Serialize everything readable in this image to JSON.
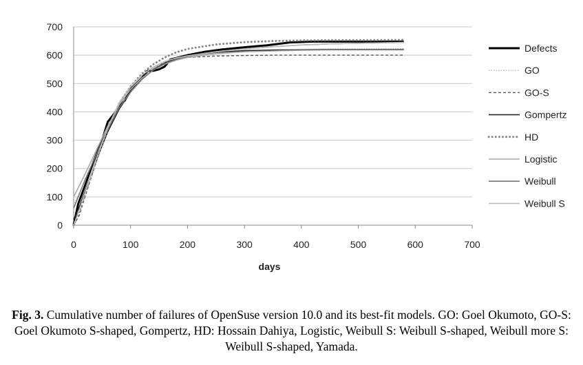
{
  "chart_data": {
    "type": "line",
    "title": "",
    "xlabel": "days",
    "ylabel": "",
    "xlim": [
      0,
      700
    ],
    "ylim": [
      0,
      700
    ],
    "xticks": [
      0,
      100,
      200,
      300,
      400,
      500,
      600,
      700
    ],
    "yticks": [
      0,
      100,
      200,
      300,
      400,
      500,
      600,
      700
    ],
    "grid": "horizontal",
    "legend_position": "right",
    "series": [
      {
        "name": "Defects",
        "style": "thick-solid",
        "color": "#000000",
        "x": [
          0,
          8,
          20,
          35,
          50,
          60,
          70,
          80,
          90,
          100,
          110,
          120,
          130,
          140,
          150,
          160,
          170,
          180,
          200,
          230,
          260,
          300,
          340,
          380,
          420,
          460,
          500,
          540,
          580
        ],
        "y": [
          0,
          75,
          140,
          225,
          300,
          365,
          390,
          420,
          440,
          480,
          500,
          520,
          545,
          545,
          550,
          560,
          585,
          590,
          600,
          612,
          620,
          628,
          635,
          645,
          648,
          648,
          648,
          648,
          648
        ]
      },
      {
        "name": "GO",
        "style": "dotted",
        "color": "#aaaaaa",
        "x": [
          0,
          20,
          40,
          60,
          80,
          100,
          120,
          140,
          160,
          180,
          200,
          250,
          300,
          350,
          400,
          450,
          500,
          580
        ],
        "y": [
          70,
          155,
          250,
          340,
          410,
          470,
          520,
          555,
          575,
          590,
          598,
          608,
          614,
          618,
          620,
          622,
          622,
          623
        ]
      },
      {
        "name": "GO-S",
        "style": "dashed",
        "color": "#555555",
        "x": [
          0,
          10,
          20,
          40,
          60,
          80,
          100,
          120,
          140,
          160,
          180,
          200,
          250,
          300,
          350,
          400,
          450,
          500,
          580
        ],
        "y": [
          0,
          35,
          100,
          225,
          340,
          430,
          490,
          530,
          558,
          575,
          585,
          592,
          597,
          599,
          600,
          600,
          600,
          600,
          600
        ]
      },
      {
        "name": "Gompertz",
        "style": "solid",
        "color": "#222222",
        "x": [
          0,
          10,
          20,
          40,
          60,
          80,
          100,
          120,
          140,
          160,
          180,
          200,
          250,
          300,
          350,
          400,
          450,
          500,
          580
        ],
        "y": [
          20,
          65,
          120,
          230,
          330,
          410,
          470,
          515,
          550,
          572,
          588,
          598,
          610,
          616,
          618,
          619,
          620,
          620,
          620
        ]
      },
      {
        "name": "HD",
        "style": "thick-dotted",
        "color": "#888888",
        "x": [
          0,
          10,
          20,
          40,
          60,
          80,
          100,
          120,
          140,
          160,
          180,
          200,
          250,
          300,
          350,
          400,
          450,
          500,
          580
        ],
        "y": [
          0,
          50,
          110,
          230,
          340,
          430,
          490,
          535,
          568,
          592,
          610,
          622,
          638,
          646,
          650,
          652,
          653,
          653,
          654
        ]
      },
      {
        "name": "Logistic",
        "style": "solid",
        "color": "#aaaaaa",
        "x": [
          0,
          10,
          20,
          40,
          60,
          80,
          100,
          120,
          140,
          160,
          180,
          200,
          250,
          300,
          350,
          400,
          450,
          500,
          580
        ],
        "y": [
          100,
          140,
          180,
          265,
          350,
          425,
          480,
          520,
          548,
          568,
          582,
          592,
          605,
          612,
          615,
          617,
          618,
          618,
          618
        ]
      },
      {
        "name": "Weibull",
        "style": "solid",
        "color": "#777777",
        "x": [
          0,
          10,
          20,
          40,
          60,
          80,
          100,
          120,
          140,
          160,
          180,
          200,
          250,
          300,
          350,
          400,
          450,
          500,
          580
        ],
        "y": [
          60,
          110,
          160,
          250,
          340,
          415,
          470,
          515,
          548,
          570,
          585,
          596,
          612,
          622,
          630,
          636,
          640,
          642,
          645
        ]
      },
      {
        "name": "Weibull S",
        "style": "solid",
        "color": "#bbbbbb",
        "x": [
          0,
          10,
          20,
          40,
          60,
          80,
          100,
          120,
          140,
          160,
          180,
          200,
          250,
          300,
          350,
          400,
          450,
          500,
          580
        ],
        "y": [
          0,
          55,
          115,
          235,
          345,
          432,
          490,
          530,
          558,
          578,
          590,
          598,
          612,
          622,
          630,
          636,
          640,
          642,
          645
        ]
      }
    ]
  },
  "caption": {
    "label": "Fig. 3.",
    "text": " Cumulative number of failures of OpenSuse version 10.0 and its best-fit models. GO: Goel Okumoto, GO-S: Goel Okumoto S-shaped, Gompertz, HD: Hossain Dahiya, Logistic, Weibull S: Weibull S-shaped, Weibull more S: Weibull S-shaped, Yamada."
  }
}
